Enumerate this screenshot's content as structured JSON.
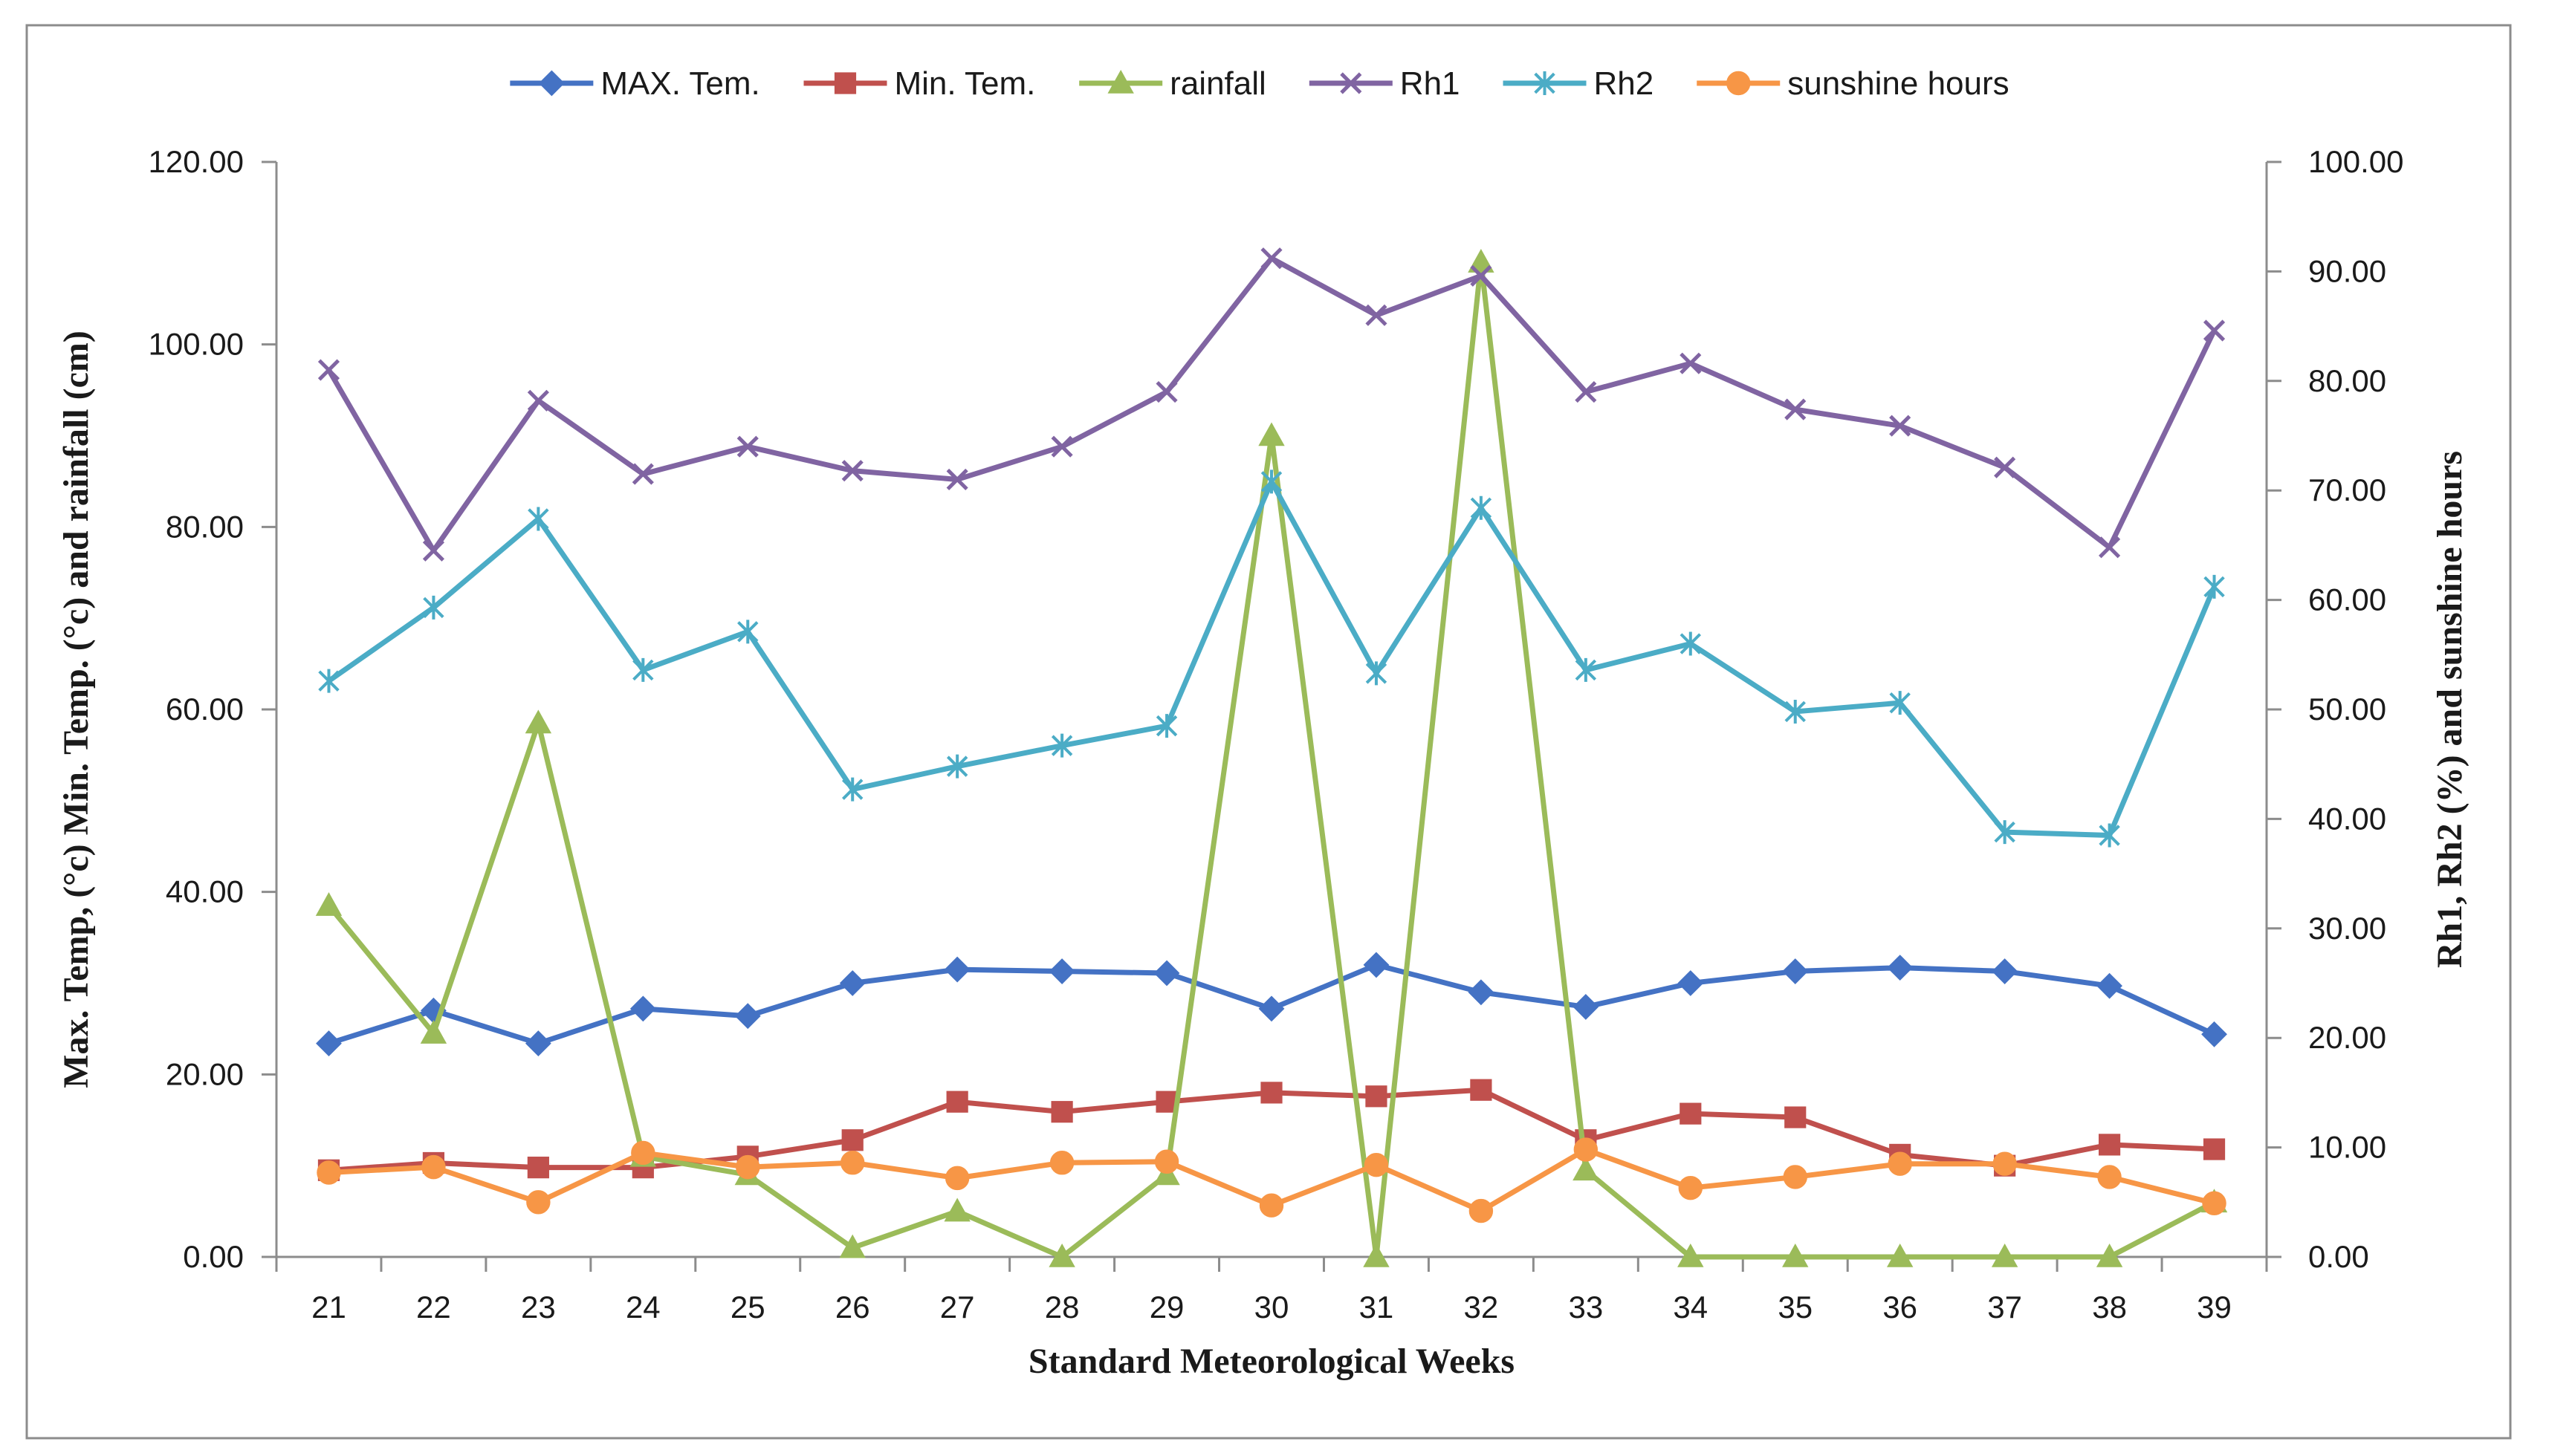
{
  "chart_data": {
    "type": "line",
    "title": "",
    "xlabel": "Standard Meteorological Weeks",
    "ylabel_left": "Max. Temp, (°c) Min. Temp. (°c) and rainfall (cm)",
    "ylabel_right": "Rh1, Rh2  (%) and sunshine hours",
    "categories": [
      "21",
      "22",
      "23",
      "24",
      "25",
      "26",
      "27",
      "28",
      "29",
      "30",
      "31",
      "32",
      "33",
      "34",
      "35",
      "36",
      "37",
      "38",
      "39"
    ],
    "ylim_left": [
      0,
      120
    ],
    "yticks_left": [
      "0.00",
      "20.00",
      "40.00",
      "60.00",
      "80.00",
      "100.00",
      "120.00"
    ],
    "ylim_right": [
      0,
      100
    ],
    "yticks_right": [
      "0.00",
      "10.00",
      "20.00",
      "30.00",
      "40.00",
      "50.00",
      "60.00",
      "70.00",
      "80.00",
      "90.00",
      "100.00"
    ],
    "grid": false,
    "legend_position": "top",
    "series": [
      {
        "name": "MAX. Tem.",
        "axis": "left",
        "color": "#4472C4",
        "marker": "diamond",
        "values": [
          23.4,
          27.0,
          23.4,
          27.2,
          26.4,
          30.0,
          31.5,
          31.3,
          31.1,
          27.2,
          32.0,
          29.0,
          27.4,
          30.0,
          31.3,
          31.7,
          31.3,
          29.7,
          24.4
        ]
      },
      {
        "name": "Min. Tem.",
        "axis": "left",
        "color": "#C0504D",
        "marker": "square",
        "values": [
          9.5,
          10.3,
          9.8,
          9.8,
          11.0,
          12.8,
          17.0,
          15.9,
          17.0,
          18.0,
          17.6,
          18.3,
          12.8,
          15.7,
          15.3,
          11.2,
          10.0,
          12.3,
          11.8
        ]
      },
      {
        "name": "rainfall",
        "axis": "left",
        "color": "#9BBB59",
        "marker": "triangle",
        "values": [
          38.5,
          24.5,
          58.5,
          11.0,
          9.0,
          1.0,
          5.0,
          0.0,
          9.0,
          90.0,
          0.0,
          109.0,
          9.5,
          0.0,
          0.0,
          0.0,
          0.0,
          0.0,
          6.0
        ]
      },
      {
        "name": "Rh1",
        "axis": "right",
        "color": "#8064A2",
        "marker": "x",
        "values": [
          81.0,
          64.5,
          78.2,
          71.5,
          74.0,
          71.8,
          71.0,
          74.0,
          79.0,
          91.2,
          86.0,
          89.6,
          79.0,
          81.6,
          77.4,
          75.9,
          72.1,
          64.8,
          84.6
        ]
      },
      {
        "name": "Rh2",
        "axis": "right",
        "color": "#4BACC6",
        "marker": "star",
        "values": [
          52.6,
          59.3,
          67.4,
          53.6,
          57.1,
          42.7,
          44.8,
          46.7,
          48.5,
          70.8,
          53.3,
          68.4,
          53.6,
          56.0,
          49.8,
          50.6,
          38.8,
          38.5,
          61.2
        ]
      },
      {
        "name": "sunshine hours",
        "axis": "right",
        "color": "#F79646",
        "marker": "circle",
        "values": [
          7.7,
          8.2,
          5.0,
          9.5,
          8.2,
          8.6,
          7.2,
          8.6,
          8.7,
          4.7,
          8.4,
          4.2,
          9.8,
          6.3,
          7.3,
          8.5,
          8.5,
          7.3,
          4.9
        ]
      }
    ]
  }
}
